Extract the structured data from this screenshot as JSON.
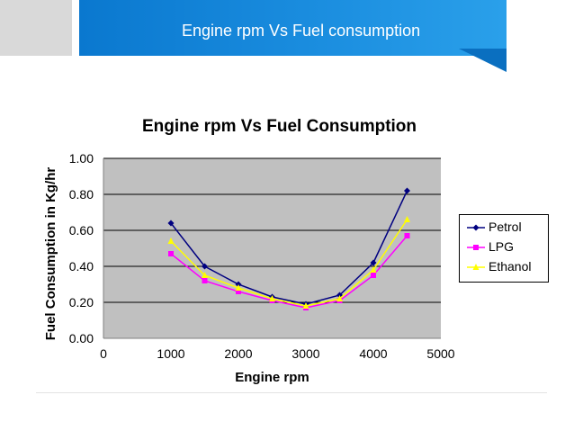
{
  "header": {
    "title": "Engine rpm Vs Fuel consumption",
    "colors": {
      "accent": "#0a78cf",
      "side_block": "#d9d9d9"
    }
  },
  "chart_data": {
    "type": "line",
    "title": "Engine rpm Vs Fuel Consumption",
    "xlabel": "Engine rpm",
    "ylabel": "Fuel Consumption in Kg/hr",
    "xlim": [
      0,
      5000
    ],
    "ylim": [
      0,
      1.0
    ],
    "x_ticks": [
      "0",
      "1000",
      "2000",
      "3000",
      "4000",
      "5000"
    ],
    "y_ticks": [
      "0.00",
      "0.20",
      "0.40",
      "0.60",
      "0.80",
      "1.00"
    ],
    "grid": true,
    "legend_position": "right",
    "plot_background": "#c0c0c0",
    "x": [
      1000,
      1500,
      2000,
      2500,
      3000,
      3500,
      4000,
      4500
    ],
    "series": [
      {
        "name": "Petrol",
        "color": "#000080",
        "marker": "diamond",
        "values": [
          0.64,
          0.4,
          0.3,
          0.23,
          0.19,
          0.24,
          0.42,
          0.82
        ]
      },
      {
        "name": "LPG",
        "color": "#ff00ff",
        "marker": "square",
        "values": [
          0.47,
          0.32,
          0.26,
          0.21,
          0.17,
          0.21,
          0.35,
          0.57
        ]
      },
      {
        "name": "Ethanol",
        "color": "#ffff00",
        "marker": "triangle",
        "values": [
          0.54,
          0.35,
          0.28,
          0.22,
          0.18,
          0.22,
          0.38,
          0.66
        ]
      }
    ]
  }
}
